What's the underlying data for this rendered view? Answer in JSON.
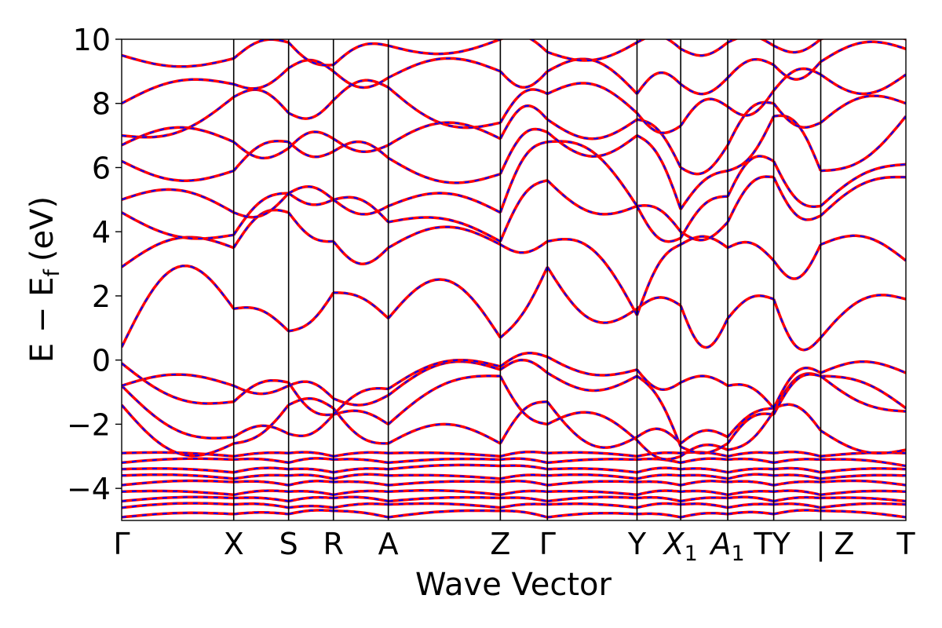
{
  "chart_data": {
    "type": "line",
    "title": "",
    "xlabel": "Wave Vector",
    "ylabel": "E − E",
    "ylabel_subscript": "f",
    "ylabel_unit": "(eV)",
    "ylim": [
      -5,
      10
    ],
    "y_ticks": [
      -4,
      -2,
      0,
      2,
      4,
      6,
      8,
      10
    ],
    "y_tick_labels": [
      "−4",
      "−2",
      "0",
      "2",
      "4",
      "6",
      "8",
      "10"
    ],
    "xlim": [
      0,
      7
    ],
    "grid": false,
    "legend": "none",
    "style": {
      "line_color": "#ff0000",
      "dash_color": "#0000ff",
      "vline_color": "#000000"
    },
    "kpoints": [
      {
        "x": 0.0,
        "label": "Γ"
      },
      {
        "x": 1.0,
        "label": "X"
      },
      {
        "x": 1.49,
        "label": "S"
      },
      {
        "x": 1.89,
        "label": "R"
      },
      {
        "x": 2.38,
        "label": "A"
      },
      {
        "x": 3.38,
        "label": "Z"
      },
      {
        "x": 3.8,
        "label": "Γ"
      },
      {
        "x": 4.6,
        "label": "Y"
      },
      {
        "x": 4.99,
        "label": "X",
        "sub": "1"
      },
      {
        "x": 5.41,
        "label": "A",
        "sub": "1"
      },
      {
        "x": 5.82,
        "label": "TY"
      },
      {
        "x": 6.24,
        "label": "|"
      },
      {
        "x": 6.24,
        "label": "Z",
        "offset_label": true
      },
      {
        "x": 7.0,
        "label": "T"
      }
    ],
    "segments": [
      {
        "x0": 0.0,
        "x1": 1.0
      },
      {
        "x0": 1.0,
        "x1": 1.49
      },
      {
        "x0": 1.49,
        "x1": 1.89
      },
      {
        "x0": 1.89,
        "x1": 2.38
      },
      {
        "x0": 2.38,
        "x1": 3.38
      },
      {
        "x0": 3.38,
        "x1": 3.8
      },
      {
        "x0": 3.8,
        "x1": 4.6
      },
      {
        "x0": 4.6,
        "x1": 4.99
      },
      {
        "x0": 4.99,
        "x1": 5.41
      },
      {
        "x0": 5.41,
        "x1": 5.82
      },
      {
        "x0": 5.82,
        "x1": 6.24
      },
      {
        "x0": 6.24,
        "x1": 7.0
      }
    ],
    "bands_at_kpoints": [
      [
        -4.9,
        -4.8,
        -4.8,
        -4.7,
        -4.9,
        -4.7,
        -4.9,
        -4.8,
        -4.9,
        -4.8,
        -4.8,
        -4.7,
        -4.9
      ],
      [
        -4.6,
        -4.5,
        -4.6,
        -4.6,
        -4.5,
        -4.6,
        -4.5,
        -4.6,
        -4.5,
        -4.6,
        -4.5,
        -4.6,
        -4.5
      ],
      [
        -4.4,
        -4.3,
        -4.4,
        -4.3,
        -4.4,
        -4.3,
        -4.4,
        -4.3,
        -4.4,
        -4.3,
        -4.4,
        -4.3,
        -4.4
      ],
      [
        -4.1,
        -4.2,
        -4.1,
        -4.2,
        -4.1,
        -4.2,
        -4.1,
        -4.2,
        -4.1,
        -4.2,
        -4.1,
        -4.2,
        -4.1
      ],
      [
        -3.9,
        -3.8,
        -3.9,
        -3.8,
        -3.9,
        -3.8,
        -3.9,
        -3.8,
        -3.9,
        -3.8,
        -3.9,
        -3.8,
        -3.9
      ],
      [
        -3.6,
        -3.7,
        -3.6,
        -3.7,
        -3.6,
        -3.7,
        -3.6,
        -3.7,
        -3.6,
        -3.7,
        -3.6,
        -3.7,
        -3.6
      ],
      [
        -3.4,
        -3.5,
        -3.4,
        -3.5,
        -3.4,
        -3.3,
        -3.4,
        -3.5,
        -3.4,
        -3.5,
        -3.4,
        -3.5,
        -3.4
      ],
      [
        -3.2,
        -3.1,
        -3.2,
        -3.1,
        -3.2,
        -3.1,
        -3.2,
        -3.1,
        -3.2,
        -3.1,
        -3.2,
        -3.1,
        -3.3
      ],
      [
        -2.9,
        -3.0,
        -2.9,
        -3.0,
        -2.9,
        -3.0,
        -2.9,
        -3.0,
        -2.9,
        -3.0,
        -2.9,
        -3.0,
        -2.9
      ],
      [
        -1.4,
        -2.6,
        -1.4,
        -1.5,
        -2.6,
        -2.6,
        -1.3,
        -2.4,
        -2.6,
        -2.4,
        -1.5,
        -2.2,
        -2.8
      ],
      [
        -0.8,
        -2.4,
        -2.3,
        -1.7,
        -2.0,
        -0.5,
        -2.0,
        -2.5,
        -3.0,
        -2.8,
        -1.6,
        -0.5,
        -1.5
      ],
      [
        -0.8,
        -0.8,
        -0.8,
        -1.2,
        -1.1,
        -0.3,
        -0.4,
        -0.5,
        -2.7,
        -2.6,
        -1.7,
        -0.5,
        -1.6
      ],
      [
        -0.1,
        -1.3,
        -0.7,
        -1.7,
        -0.9,
        -0.2,
        0.1,
        -0.3,
        -0.7,
        -0.8,
        -1.5,
        -0.4,
        -0.4
      ],
      [
        0.4,
        1.6,
        0.9,
        2.1,
        1.3,
        0.7,
        2.9,
        1.6,
        1.7,
        1.3,
        1.9,
        0.7,
        1.9
      ],
      [
        2.9,
        3.5,
        4.6,
        3.7,
        3.5,
        3.6,
        3.7,
        1.4,
        3.6,
        3.5,
        3.1,
        3.6,
        3.1
      ],
      [
        4.6,
        3.9,
        5.2,
        5.0,
        4.3,
        3.7,
        5.6,
        4.8,
        4.0,
        4.3,
        5.7,
        4.5,
        5.7
      ],
      [
        5.0,
        4.6,
        5.2,
        5.0,
        4.8,
        4.6,
        6.8,
        4.8,
        3.8,
        5.1,
        6.2,
        4.8,
        6.1
      ],
      [
        6.2,
        5.9,
        6.8,
        6.5,
        6.3,
        5.8,
        7.1,
        7.0,
        4.7,
        5.9,
        7.6,
        5.9,
        7.6
      ],
      [
        6.7,
        6.8,
        6.6,
        6.9,
        6.7,
        6.9,
        7.5,
        7.5,
        6.0,
        6.7,
        8.0,
        7.4,
        8.0
      ],
      [
        7.0,
        8.2,
        7.7,
        8.1,
        8.5,
        7.4,
        8.3,
        7.7,
        7.3,
        7.9,
        8.4,
        8.9,
        8.9
      ],
      [
        8.0,
        8.6,
        9.1,
        9.0,
        8.8,
        9.0,
        9.0,
        8.3,
        8.6,
        8.8,
        9.2,
        9.3,
        9.7
      ],
      [
        9.5,
        9.4,
        9.9,
        9.2,
        9.8,
        10.0,
        9.6,
        9.9,
        9.7,
        9.9,
        9.8,
        10.0,
        10.0
      ]
    ],
    "band_wiggle": [
      [
        0.08,
        0.05,
        0.06,
        0.05,
        0.08,
        0.06,
        0.07,
        0.05,
        0.07,
        0.06,
        0.06,
        0.05
      ],
      [
        0.08,
        0.06,
        0.05,
        0.06,
        0.07,
        0.05,
        0.06,
        0.07,
        0.06,
        0.05,
        0.06,
        0.07
      ],
      [
        0.07,
        0.05,
        0.06,
        0.07,
        0.06,
        0.05,
        0.07,
        0.06,
        0.05,
        0.07,
        0.06,
        0.05
      ],
      [
        0.06,
        0.07,
        0.05,
        0.06,
        0.08,
        0.06,
        0.05,
        0.07,
        0.06,
        0.05,
        0.07,
        0.06
      ],
      [
        0.08,
        0.06,
        0.07,
        0.05,
        0.06,
        0.07,
        0.06,
        0.05,
        0.07,
        0.06,
        0.05,
        0.08
      ],
      [
        0.07,
        0.05,
        0.06,
        0.08,
        0.05,
        0.06,
        0.07,
        0.06,
        0.05,
        0.08,
        0.06,
        0.05
      ],
      [
        0.06,
        0.08,
        0.05,
        0.06,
        0.07,
        0.05,
        0.06,
        0.08,
        0.06,
        0.05,
        0.07,
        0.06
      ],
      [
        0.07,
        0.06,
        0.08,
        0.05,
        0.06,
        0.07,
        0.05,
        0.06,
        0.07,
        0.06,
        0.05,
        0.08
      ],
      [
        0.06,
        0.05,
        0.07,
        0.06,
        0.05,
        0.08,
        0.06,
        0.05,
        0.07,
        0.06,
        0.08,
        0.05
      ],
      [
        -0.9,
        -0.3,
        0.25,
        -0.35,
        0.6,
        0.4,
        -0.8,
        0.35,
        0.3,
        0.25,
        0.4,
        -0.35
      ],
      [
        -0.6,
        0.3,
        -0.3,
        0.25,
        0.5,
        -0.4,
        0.6,
        -0.3,
        0.25,
        -0.3,
        0.5,
        0.3
      ],
      [
        0.35,
        -0.25,
        0.3,
        -0.25,
        0.6,
        0.35,
        -0.5,
        0.4,
        -0.25,
        0.35,
        0.5,
        -0.3
      ],
      [
        -0.5,
        0.3,
        -0.35,
        0.3,
        0.5,
        0.25,
        -0.35,
        -0.4,
        0.25,
        0.3,
        0.6,
        0.35
      ],
      [
        1.9,
        0.3,
        -0.3,
        0.25,
        1.5,
        -0.3,
        -1.0,
        0.3,
        -1.1,
        0.35,
        -0.9,
        0.6
      ],
      [
        0.6,
        0.5,
        -0.3,
        -0.6,
        0.6,
        -0.3,
        0.9,
        0.5,
        0.3,
        0.35,
        -0.8,
        0.5
      ],
      [
        -0.4,
        0.4,
        -0.25,
        0.35,
        0.4,
        0.5,
        -0.6,
        0.3,
        -0.4,
        0.5,
        -0.6,
        0.4
      ],
      [
        0.5,
        -0.4,
        0.3,
        -0.35,
        0.5,
        0.6,
        0.7,
        -0.5,
        0.4,
        0.6,
        -0.5,
        0.35
      ],
      [
        -0.45,
        0.35,
        -0.3,
        0.4,
        -0.5,
        0.6,
        -0.7,
        0.5,
        0.3,
        -0.4,
        0.6,
        -0.5
      ],
      [
        0.5,
        -0.4,
        0.35,
        -0.3,
        0.6,
        0.7,
        -0.6,
        0.4,
        -0.5,
        0.5,
        -0.4,
        0.5
      ],
      [
        -0.5,
        0.45,
        -0.35,
        0.4,
        -0.6,
        0.5,
        0.6,
        -0.4,
        0.5,
        -0.5,
        0.4,
        -0.6
      ],
      [
        0.4,
        -0.35,
        0.3,
        -0.4,
        0.5,
        -0.5,
        0.7,
        0.5,
        -0.4,
        0.35,
        -0.5,
        0.4
      ],
      [
        -0.3,
        0.3,
        -0.25,
        0.3,
        -0.35,
        0.3,
        -0.4,
        0.3,
        -0.3,
        0.25,
        -0.3,
        0.3
      ]
    ]
  }
}
